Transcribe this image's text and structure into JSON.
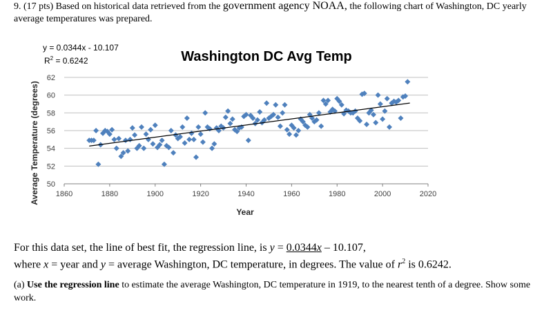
{
  "question": {
    "number_pts": "9. (17 pts)",
    "intro_pre": "Based on historical data retrieved from the",
    "intro_big": "government agency NOAA,",
    "intro_post": "the following chart of Washington, DC yearly average temperatures was prepared."
  },
  "chart_data": {
    "type": "scatter",
    "title": "Washington DC Avg Temp",
    "xlabel": "Year",
    "ylabel": "Average Temperature (degrees)",
    "xlim": [
      1860,
      2020
    ],
    "ylim": [
      50,
      62
    ],
    "xticks": [
      1860,
      1880,
      1900,
      1920,
      1940,
      1960,
      1980,
      2000,
      2020
    ],
    "yticks": [
      50,
      52,
      54,
      56,
      58,
      60,
      62
    ],
    "grid": "horizontal",
    "equation": "y = 0.0344x - 10.107",
    "r_squared_prefix": "R",
    "r_squared_exp": "2",
    "r_squared_suffix": " = 0.6242",
    "trendline": {
      "slope": 0.0344,
      "intercept": -10.107,
      "x_start": 1871,
      "x_end": 2012
    },
    "marker_color": "#4f81bd",
    "line_color": "#000000",
    "points": [
      [
        1871,
        54.9
      ],
      [
        1872,
        54.9
      ],
      [
        1873,
        54.9
      ],
      [
        1874,
        56.0
      ],
      [
        1875,
        52.2
      ],
      [
        1876,
        54.4
      ],
      [
        1877,
        55.7
      ],
      [
        1878,
        56.0
      ],
      [
        1879,
        55.9
      ],
      [
        1880,
        55.6
      ],
      [
        1881,
        56.1
      ],
      [
        1882,
        55.0
      ],
      [
        1883,
        54.0
      ],
      [
        1884,
        55.1
      ],
      [
        1885,
        53.1
      ],
      [
        1886,
        53.5
      ],
      [
        1887,
        54.9
      ],
      [
        1888,
        53.7
      ],
      [
        1889,
        55.0
      ],
      [
        1890,
        56.3
      ],
      [
        1891,
        55.5
      ],
      [
        1892,
        54.0
      ],
      [
        1893,
        54.3
      ],
      [
        1894,
        56.4
      ],
      [
        1895,
        54.0
      ],
      [
        1896,
        55.6
      ],
      [
        1897,
        55.0
      ],
      [
        1898,
        56.1
      ],
      [
        1899,
        54.5
      ],
      [
        1900,
        56.6
      ],
      [
        1901,
        54.1
      ],
      [
        1902,
        54.4
      ],
      [
        1903,
        54.9
      ],
      [
        1904,
        52.2
      ],
      [
        1905,
        54.3
      ],
      [
        1906,
        54.1
      ],
      [
        1907,
        56.0
      ],
      [
        1908,
        53.5
      ],
      [
        1909,
        55.5
      ],
      [
        1910,
        55.1
      ],
      [
        1911,
        55.3
      ],
      [
        1912,
        56.4
      ],
      [
        1913,
        54.6
      ],
      [
        1914,
        57.4
      ],
      [
        1915,
        55.0
      ],
      [
        1916,
        55.7
      ],
      [
        1917,
        55.0
      ],
      [
        1918,
        53.0
      ],
      [
        1919,
        56.4
      ],
      [
        1920,
        55.6
      ],
      [
        1921,
        54.7
      ],
      [
        1922,
        58.0
      ],
      [
        1923,
        56.4
      ],
      [
        1924,
        56.2
      ],
      [
        1925,
        54.0
      ],
      [
        1926,
        54.5
      ],
      [
        1927,
        56.3
      ],
      [
        1928,
        56.0
      ],
      [
        1929,
        56.5
      ],
      [
        1930,
        56.3
      ],
      [
        1931,
        57.5
      ],
      [
        1932,
        58.2
      ],
      [
        1933,
        56.8
      ],
      [
        1934,
        57.3
      ],
      [
        1935,
        56.1
      ],
      [
        1936,
        55.9
      ],
      [
        1937,
        56.3
      ],
      [
        1938,
        56.4
      ],
      [
        1939,
        57.6
      ],
      [
        1940,
        57.8
      ],
      [
        1941,
        54.9
      ],
      [
        1942,
        57.7
      ],
      [
        1943,
        57.4
      ],
      [
        1944,
        56.8
      ],
      [
        1945,
        57.2
      ],
      [
        1946,
        58.1
      ],
      [
        1947,
        56.9
      ],
      [
        1948,
        57.2
      ],
      [
        1949,
        59.1
      ],
      [
        1950,
        57.4
      ],
      [
        1951,
        57.6
      ],
      [
        1952,
        57.8
      ],
      [
        1953,
        58.9
      ],
      [
        1954,
        57.5
      ],
      [
        1955,
        56.5
      ],
      [
        1956,
        58.0
      ],
      [
        1957,
        58.9
      ],
      [
        1958,
        56.1
      ],
      [
        1959,
        55.6
      ],
      [
        1960,
        56.6
      ],
      [
        1961,
        56.3
      ],
      [
        1962,
        55.5
      ],
      [
        1963,
        56.0
      ],
      [
        1964,
        57.3
      ],
      [
        1965,
        57.0
      ],
      [
        1966,
        56.6
      ],
      [
        1967,
        56.4
      ],
      [
        1968,
        57.8
      ],
      [
        1969,
        57.4
      ],
      [
        1970,
        57.0
      ],
      [
        1971,
        57.2
      ],
      [
        1972,
        58.0
      ],
      [
        1973,
        56.5
      ],
      [
        1974,
        59.4
      ],
      [
        1975,
        59.0
      ],
      [
        1976,
        59.4
      ],
      [
        1977,
        58.1
      ],
      [
        1978,
        58.4
      ],
      [
        1979,
        58.2
      ],
      [
        1980,
        59.6
      ],
      [
        1981,
        59.3
      ],
      [
        1982,
        58.9
      ],
      [
        1983,
        57.9
      ],
      [
        1984,
        58.3
      ],
      [
        1985,
        58.2
      ],
      [
        1986,
        58.0
      ],
      [
        1987,
        58.0
      ],
      [
        1988,
        58.2
      ],
      [
        1989,
        57.4
      ],
      [
        1990,
        57.1
      ],
      [
        1991,
        60.1
      ],
      [
        1992,
        60.2
      ],
      [
        1993,
        56.7
      ],
      [
        1994,
        58.0
      ],
      [
        1995,
        58.3
      ],
      [
        1996,
        57.8
      ],
      [
        1997,
        56.9
      ],
      [
        1998,
        60.0
      ],
      [
        1999,
        59.0
      ],
      [
        2000,
        57.3
      ],
      [
        2001,
        58.2
      ],
      [
        2002,
        59.6
      ],
      [
        2003,
        56.4
      ],
      [
        2004,
        59.1
      ],
      [
        2005,
        59.3
      ],
      [
        2006,
        59.2
      ],
      [
        2007,
        59.4
      ],
      [
        2008,
        57.4
      ],
      [
        2009,
        59.8
      ],
      [
        2010,
        59.9
      ],
      [
        2011,
        61.5
      ]
    ]
  },
  "paragraph": {
    "l1_pre": "For this data set, the line of best fit, the regression line, is ",
    "l1_y": "y",
    "l1_eq": " = ",
    "l1_coef": "0.0344",
    "l1_x": "x",
    "l1_rest": " – 10.107,",
    "l2_pre": "where ",
    "l2_x": "x",
    "l2_mid": " = year and ",
    "l2_y": "y",
    "l2_mid2": " = average Washington, DC temperature, in degrees. The value of ",
    "l2_r": "r",
    "l2_exp": "2",
    "l2_post": " is 0.6242."
  },
  "part_a": {
    "label": "(a) ",
    "bold": "Use the regression line",
    "rest": " to estimate the average Washington, DC temperature in 1919, to the nearest tenth of a degree. Show some work."
  }
}
